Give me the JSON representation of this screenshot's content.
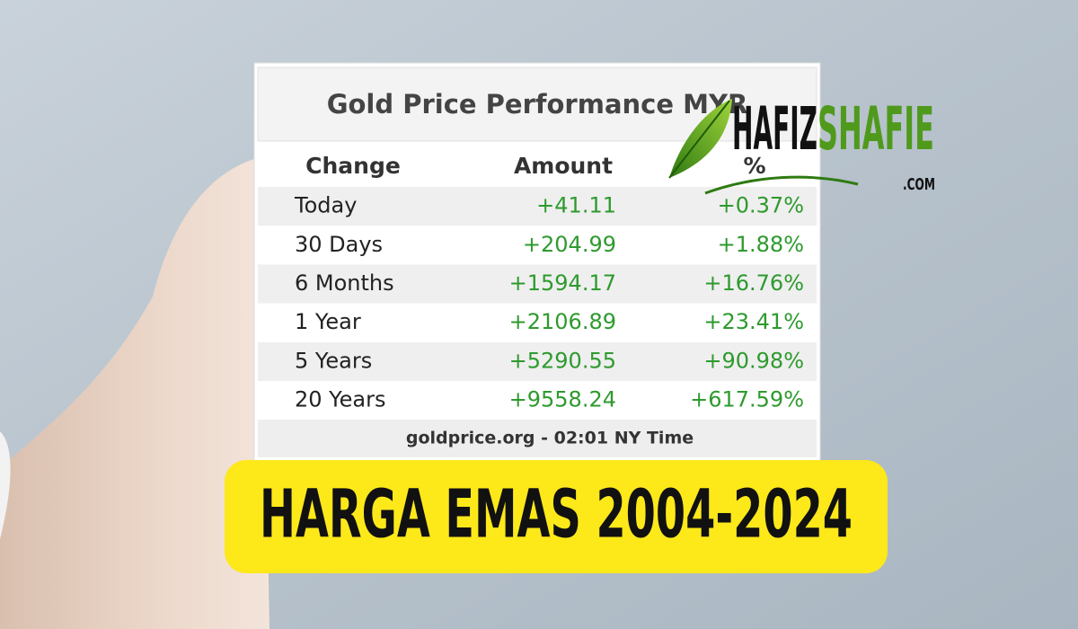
{
  "table": {
    "title": "Gold Price Performance MYR",
    "header": [
      "Change",
      "Amount",
      "%"
    ],
    "rows": [
      [
        "Today",
        "+41.11",
        "+0.37%"
      ],
      [
        "30 Days",
        "+204.99",
        "+1.88%"
      ],
      [
        "6 Months",
        "+1594.17",
        "+16.76%"
      ],
      [
        "1 Year",
        "+2106.89",
        "+23.41%"
      ],
      [
        "5 Years",
        "+5290.55",
        "+90.98%"
      ],
      [
        "20 Years",
        "+9558.24",
        "+617.59%"
      ]
    ],
    "footer": "goldprice.org - 02:01 NY Time"
  },
  "logo": {
    "first": "HAFIZ",
    "second": "SHAFIE",
    "suffix": ".COM"
  },
  "banner": {
    "text": "HARGA EMAS 2004-2024"
  }
}
